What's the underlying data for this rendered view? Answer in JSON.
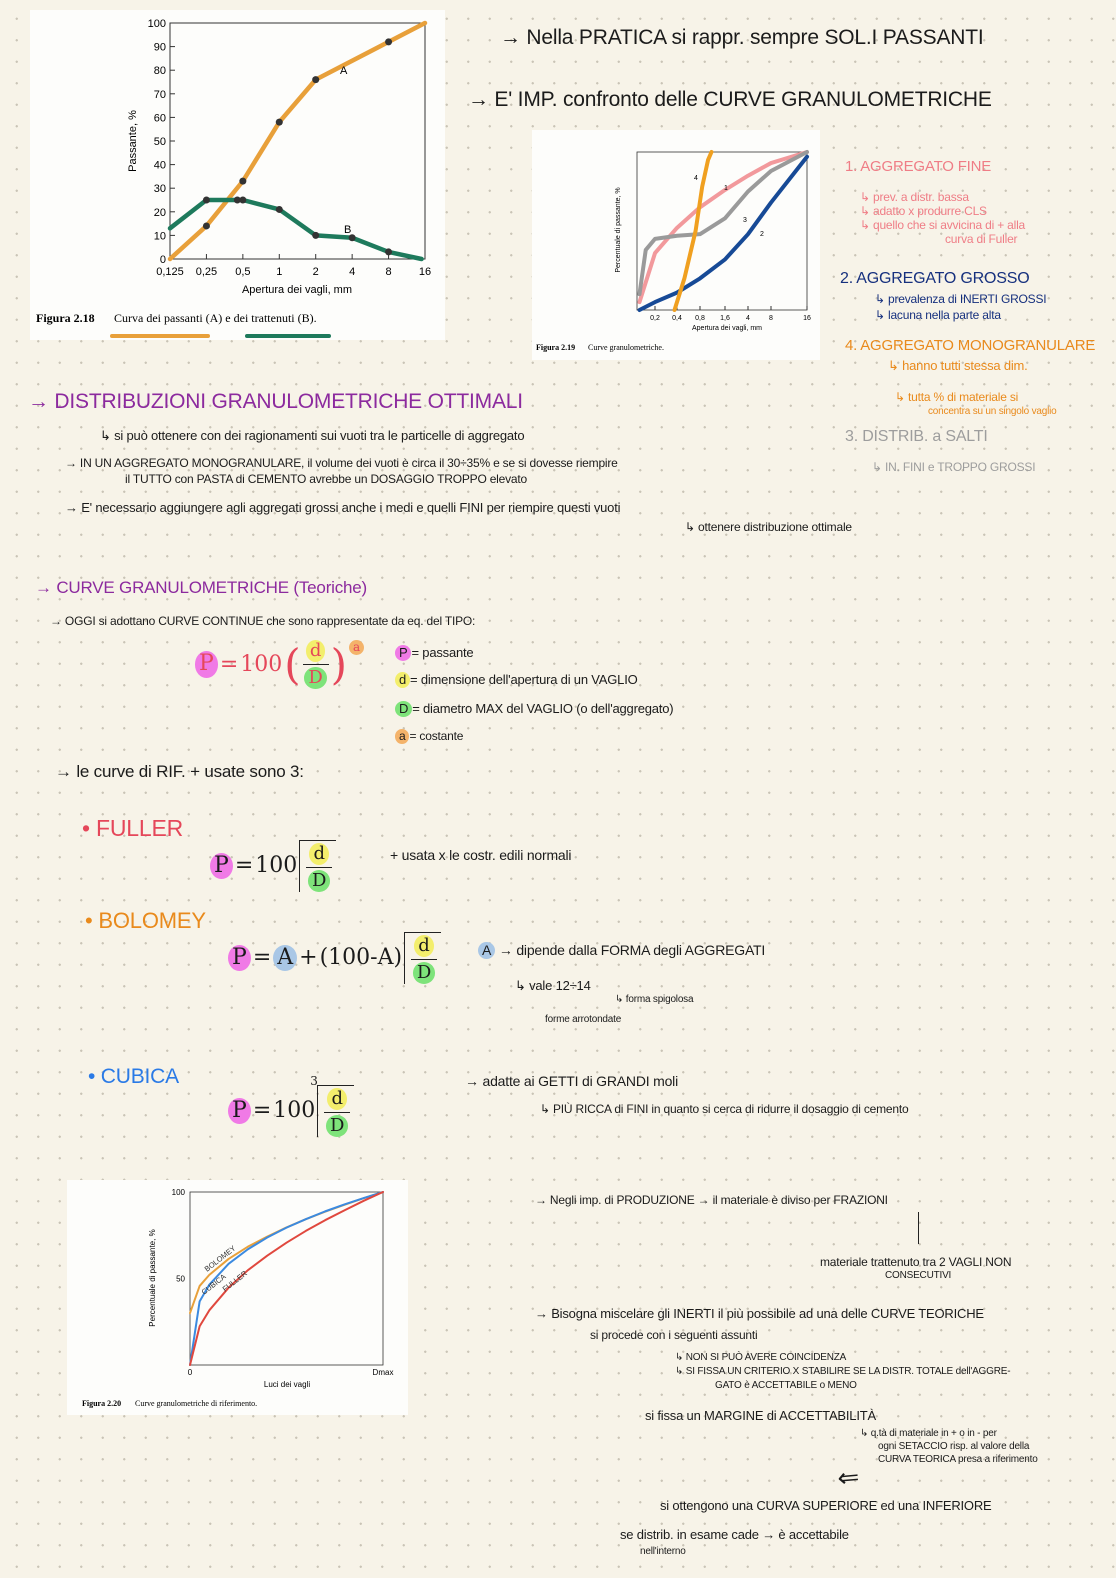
{
  "notes": {
    "pratica": "→ Nella PRATICA si rappr. sempre SOL.I PASSANTI",
    "confronto": "→ E' IMP. confronto delle CURVE GRANULOMETRICHE",
    "fine": {
      "title": "1. AGGREGATO FINE",
      "l1": "↳ prev. a distr. bassa",
      "l2": "↳ adatto x produrre CLS",
      "l3": "↳ quello che si avvicina di + alla",
      "l4": "curva di Fuller"
    },
    "grosso": {
      "title": "2. AGGREGATO GROSSO",
      "l1": "↳ prevalenza di INERTI GROSSI",
      "l2": "↳ lacuna nella parte alta"
    },
    "mono": {
      "title": "4. AGGREGATO MONOGRANULARE",
      "l1": "↳ hanno tutti stessa dim.",
      "l2": "↳ tutta % di materiale si",
      "l3": "concentra su un singolo vaglio"
    },
    "salti": {
      "title": "3. DISTRIB. a SALTI",
      "l1": "↳ IN. FINI e TROPPO GROSSI"
    },
    "ottimali": {
      "title": "→ DISTRIBUZIONI GRANULOMETRICHE OTTIMALI",
      "l1": "↳ si può ottenere con dei ragionamenti sui vuoti tra le particelle di aggregato",
      "l2": "→ IN UN AGGREGATO MONOGRANULARE, il volume dei vuoti è circa il 30÷35% e se si dovesse riempire",
      "l3": "il TUTTO con PASTA di CEMENTO avrebbe un DOSAGGIO TROPPO elevato",
      "l4": "→ E' necessario aggiungere agli aggregati grossi anche i medi e quelli FINI per riempire questi vuoti",
      "l5": "↳ ottenere distribuzione ottimale"
    },
    "teoriche": {
      "title": "→ CURVE GRANULOMETRICHE (Teoriche)",
      "l1": "→ OGGI si adottano CURVE CONTINUE che sono rappresentate da eq. del TIPO:",
      "legend": [
        {
          "sym": "P",
          "text": "= passante"
        },
        {
          "sym": "d",
          "text": "= dimensione dell'apertura di un VAGLIO"
        },
        {
          "sym": "D",
          "text": "= diametro MAX del VAGLIO (o dell'aggregato)"
        },
        {
          "sym": "a",
          "text": "= costante"
        }
      ],
      "rif": "→ le curve di RIF. + usate sono 3:"
    },
    "formula": {
      "P": "P",
      "eq": "=",
      "k": "100",
      "d": "d",
      "D": "D",
      "a": "a",
      "A": "A",
      "plus": "+",
      "bolomey_mid": "(100-A)",
      "root3": "3"
    },
    "fuller": {
      "title": "• FULLER",
      "note": "+ usata x le costr. edili normali"
    },
    "bolomey": {
      "title": "• BOLOMEY",
      "l1": "→ dipende dalla FORMA degli AGGREGATI",
      "l2": "↳ vale 12÷14",
      "l3": "↳ forma spigolosa",
      "l4": "forme arrotondate"
    },
    "cubica": {
      "title": "• CUBICA",
      "l1": "→ adatte ai GETTI di GRANDI moli",
      "l2": "↳ PIÙ RICCA di FINI in quanto si cerca di ridurre il dosaggio di cemento"
    },
    "produzione": {
      "l1": "→ Negli imp. di PRODUZIONE → il materiale è diviso per FRAZIONI",
      "l2": "materiale trattenuto tra 2 VAGLI NON",
      "l3": "CONSECUTIVI"
    },
    "miscela": {
      "l1": "→ Bisogna miscelare gli INERTI il più possibile ad una delle CURVE TEORICHE",
      "l2": "si procede con i seguenti assunti",
      "l3": "↳ NON SI PUÒ AVERE COINCIDENZA",
      "l4": "↳ SI FISSA UN CRITERIO X STABILIRE SE LA DISTR. TOTALE dell'AGGRE-",
      "l5": "GATO è ACCETTABILE o MENO",
      "l6": "si fissa un MARGINE di ACCETTABILITÀ",
      "l7": "↳ q.tà di materiale in + o in - per",
      "l8": "ogni SETACCIO risp. al valore della",
      "l9": "CURVA TEORICA presa a riferimento",
      "l10": "si ottengono una CURVA SUPERIORE ed una INFERIORE",
      "l11": "se distrib. in esame cade → è accettabile",
      "l12": "nell'interno"
    }
  },
  "colors": {
    "pink": "#ef7d86",
    "navy": "#16307e",
    "orange": "#e98a1c",
    "grey": "#9d9d9d",
    "purple": "#8c2a9e",
    "red": "#e5475a",
    "blue": "#2a7ae6"
  },
  "chart_data": [
    {
      "type": "line",
      "caption_label": "Figura 2.18",
      "caption": "Curva dei passanti (A) e dei trattenuti (B).",
      "xlabel": "Apertura dei vagli, mm",
      "ylabel": "Passante, %",
      "x_scale": "log",
      "x_ticks": [
        "0,125",
        "0,25",
        "0,5",
        "1",
        "2",
        "4",
        "8",
        "16"
      ],
      "y_ticks": [
        "0",
        "10",
        "20",
        "30",
        "40",
        "50",
        "60",
        "70",
        "80",
        "90",
        "100"
      ],
      "ylim": [
        0,
        100
      ],
      "series": [
        {
          "name": "A",
          "color": "#e8a03a",
          "x": [
            0.125,
            0.25,
            0.5,
            1,
            2,
            8,
            16
          ],
          "y": [
            0,
            14,
            33,
            58,
            76,
            92,
            100
          ]
        },
        {
          "name": "B",
          "color": "#1e7a5c",
          "x": [
            0.125,
            0.25,
            0.45,
            0.5,
            1,
            2,
            4,
            8,
            15
          ],
          "y": [
            13,
            25,
            25,
            25,
            21,
            10,
            9,
            3,
            0
          ]
        }
      ]
    },
    {
      "type": "line",
      "caption_label": "Figura 2.19",
      "caption": "Curve granulometriche.",
      "xlabel": "Apertura dei vagli, mm",
      "ylabel": "Percentuale di passante, %",
      "x_scale": "log",
      "x_ticks": [
        "0,2",
        "0,4",
        "0,8",
        "1,6",
        "4",
        "8",
        "16"
      ],
      "ylim": [
        0,
        100
      ],
      "series": [
        {
          "name": "1",
          "color": "#f2999c",
          "x": [
            0.11,
            0.2,
            0.4,
            0.8,
            1.6,
            4,
            8,
            16
          ],
          "y": [
            5,
            36,
            52,
            65,
            76,
            85,
            93,
            100
          ]
        },
        {
          "name": "2",
          "color": "#174a96",
          "x": [
            0.11,
            0.2,
            0.4,
            0.8,
            1.6,
            4,
            8,
            16
          ],
          "y": [
            0,
            5,
            11,
            20,
            32,
            48,
            68,
            97
          ]
        },
        {
          "name": "3",
          "color": "#9a9a9a",
          "x": [
            0.11,
            0.14,
            0.2,
            0.4,
            0.8,
            1.6,
            4,
            8,
            16
          ],
          "y": [
            10,
            38,
            45,
            47,
            48,
            58,
            75,
            88,
            100
          ]
        },
        {
          "name": "4",
          "color": "#f0a020",
          "x": [
            0.37,
            0.5,
            0.7,
            0.85,
            1.0,
            1.1
          ],
          "y": [
            0,
            20,
            50,
            78,
            95,
            100
          ]
        }
      ]
    },
    {
      "type": "line",
      "caption_label": "Figura 2.20",
      "caption": "Curve granulometriche di riferimento.",
      "xlabel": "Luci dei vagli",
      "ylabel": "Percentuale di passante, %",
      "x_ticks": [
        "0",
        "Dmax"
      ],
      "y_ticks": [
        "0",
        "50",
        "100"
      ],
      "ylim": [
        0,
        100
      ],
      "series": [
        {
          "name": "BOLOMEY",
          "color": "#e8a03a",
          "x": [
            0,
            0.05,
            0.1,
            0.2,
            0.3,
            0.4,
            0.5,
            0.6,
            0.7,
            0.8,
            0.9,
            1
          ],
          "y": [
            30,
            45.7,
            52.1,
            61.3,
            68.4,
            74.2,
            79.5,
            84.3,
            88.6,
            92.6,
            96.4,
            100
          ]
        },
        {
          "name": "CUBICA",
          "color": "#3b8ae0",
          "x": [
            0,
            0.05,
            0.1,
            0.2,
            0.3,
            0.4,
            0.5,
            0.6,
            0.7,
            0.8,
            0.9,
            1
          ],
          "y": [
            0,
            36.8,
            46.4,
            58.5,
            66.9,
            73.7,
            79.4,
            84.3,
            88.8,
            92.8,
            96.5,
            100
          ]
        },
        {
          "name": "FULLER",
          "color": "#e0483e",
          "x": [
            0,
            0.05,
            0.1,
            0.2,
            0.3,
            0.4,
            0.5,
            0.6,
            0.7,
            0.8,
            0.9,
            1
          ],
          "y": [
            0,
            22.4,
            31.6,
            44.7,
            54.8,
            63.2,
            70.7,
            77.5,
            83.7,
            89.4,
            94.9,
            100
          ]
        }
      ]
    }
  ]
}
